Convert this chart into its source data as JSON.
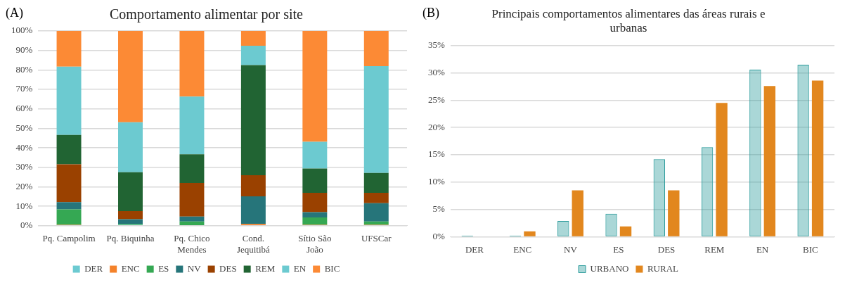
{
  "chart_data": [
    {
      "type": "bar",
      "title": "Comportamento alimentar por site",
      "annotations": [
        "(A)"
      ],
      "stacked": true,
      "legend": "bottom",
      "grid": "y",
      "categories": [
        "Pq. Campolim",
        "Pq. Biquinha",
        "Pq. Chico Mendes",
        "Cond. Jequitibá",
        "Sítio São João",
        "UFSCar"
      ],
      "ylim": [
        0,
        100
      ],
      "yticks": [
        {
          "value": 0,
          "label": "0%"
        },
        {
          "value": 10,
          "label": "10%"
        },
        {
          "value": 20,
          "label": "20%"
        },
        {
          "value": 30,
          "label": "30%"
        },
        {
          "value": 40,
          "label": "40%"
        },
        {
          "value": 50,
          "label": "50%"
        },
        {
          "value": 60,
          "label": "60%"
        },
        {
          "value": 70,
          "label": "70%"
        },
        {
          "value": 80,
          "label": "80%"
        },
        {
          "value": 90,
          "label": "90%"
        },
        {
          "value": 100,
          "label": "100%"
        }
      ],
      "series": [
        {
          "name": "DER",
          "color": "#6ccad1",
          "values": [
            0,
            0.5,
            0,
            0,
            0,
            0
          ]
        },
        {
          "name": "ENC",
          "color": "#f4822a",
          "values": [
            0.5,
            0,
            0,
            0.9,
            0.5,
            0.5
          ]
        },
        {
          "name": "ES",
          "color": "#35a853",
          "values": [
            7.9,
            0.5,
            2.2,
            0,
            3.8,
            1.7
          ]
        },
        {
          "name": "NV",
          "color": "#26757a",
          "values": [
            3.7,
            2.4,
            2.5,
            14.2,
            2.7,
            9.4
          ]
        },
        {
          "name": "DES",
          "color": "#9a4100",
          "values": [
            19.4,
            4.1,
            17.3,
            10.8,
            9.9,
            5.3
          ]
        },
        {
          "name": "REM",
          "color": "#216433",
          "values": [
            15.1,
            20,
            14.7,
            56.6,
            12.5,
            10.2
          ]
        },
        {
          "name": "EN",
          "color": "#6ccad0",
          "values": [
            35.1,
            25.6,
            29.6,
            9.9,
            13.7,
            54.8
          ]
        },
        {
          "name": "BIC",
          "color": "#fc8a35",
          "values": [
            18.3,
            46.9,
            33.7,
            7.6,
            56.9,
            18.1
          ]
        }
      ]
    },
    {
      "type": "bar",
      "title": "Principais comportamentos alimentares das áreas rurais e urbanas",
      "annotations": [
        "(B)"
      ],
      "legend": "bottom",
      "grid": "y",
      "categories": [
        "DER",
        "ENC",
        "NV",
        "ES",
        "DES",
        "REM",
        "EN",
        "BIC"
      ],
      "ylim": [
        0,
        35
      ],
      "yticks": [
        {
          "value": 0,
          "label": "0%"
        },
        {
          "value": 5,
          "label": "5%"
        },
        {
          "value": 10,
          "label": "10%"
        },
        {
          "value": 15,
          "label": "15%"
        },
        {
          "value": 20,
          "label": "20%"
        },
        {
          "value": 25,
          "label": "25%"
        },
        {
          "value": 30,
          "label": "30%"
        },
        {
          "value": 35,
          "label": "35%"
        }
      ],
      "series": [
        {
          "name": "URBANO",
          "color": "#2a9b9b",
          "values": [
            0.2,
            0.2,
            2.9,
            4.2,
            14.2,
            16.4,
            30.6,
            31.5
          ]
        },
        {
          "name": "RURAL",
          "color": "#e2871e",
          "values": [
            0,
            1.0,
            8.5,
            1.9,
            8.5,
            24.5,
            27.6,
            28.6
          ]
        }
      ]
    }
  ]
}
